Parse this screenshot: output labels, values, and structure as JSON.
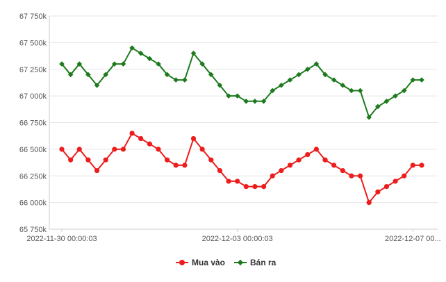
{
  "chart_data": {
    "type": "line",
    "title": "",
    "xlabel": "",
    "ylabel": "",
    "ylim": [
      65750,
      67750
    ],
    "yticks": [
      65750,
      66000,
      66250,
      66500,
      66750,
      67000,
      67250,
      67500,
      67750
    ],
    "ytick_labels": [
      "65 750k",
      "66 000k",
      "66 250k",
      "66 500k",
      "66 750k",
      "67 000k",
      "67 250k",
      "67 500k",
      "67 750k"
    ],
    "xtick_labels": [
      {
        "index": 0,
        "label": "2022-11-30 00:00:03"
      },
      {
        "index": 20,
        "label": "2022-12-03 00:00:03"
      },
      {
        "index": 40,
        "label": "2022-12-07 00..."
      }
    ],
    "grid": true,
    "legend_position": "bottom",
    "series": [
      {
        "name": "Mua vào",
        "color": "#ee1c1c",
        "marker": "circle",
        "values": [
          66500,
          66400,
          66500,
          66400,
          66300,
          66400,
          66500,
          66500,
          66650,
          66600,
          66550,
          66500,
          66400,
          66350,
          66350,
          66600,
          66500,
          66400,
          66300,
          66200,
          66200,
          66150,
          66150,
          66150,
          66250,
          66300,
          66350,
          66400,
          66450,
          66500,
          66400,
          66350,
          66300,
          66250,
          66250,
          66000,
          66100,
          66150,
          66200,
          66250,
          66350,
          66350
        ]
      },
      {
        "name": "Bán ra",
        "color": "#1d7a1d",
        "marker": "diamond",
        "values": [
          67300,
          67200,
          67300,
          67200,
          67100,
          67200,
          67300,
          67300,
          67450,
          67400,
          67350,
          67300,
          67200,
          67150,
          67150,
          67400,
          67300,
          67200,
          67100,
          67000,
          67000,
          66950,
          66950,
          66950,
          67050,
          67100,
          67150,
          67200,
          67250,
          67300,
          67200,
          67150,
          67100,
          67050,
          67050,
          66800,
          66900,
          66950,
          67000,
          67050,
          67150,
          67150
        ]
      }
    ]
  }
}
